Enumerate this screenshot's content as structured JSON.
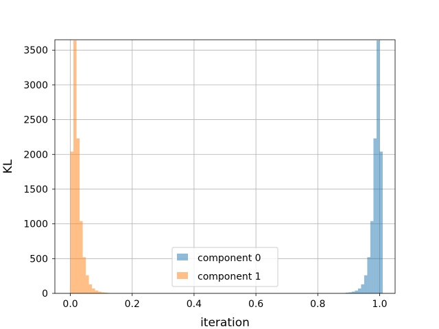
{
  "chart_data": {
    "type": "bar",
    "subtype": "histogram",
    "xlabel": "iteration",
    "ylabel": "KL",
    "xlim": [
      -0.05,
      1.05
    ],
    "ylim": [
      0,
      3650
    ],
    "grid": true,
    "legend_position": "lower-center",
    "x_ticks": [
      "0.0",
      "0.2",
      "0.4",
      "0.6",
      "0.8",
      "1.0"
    ],
    "y_ticks": [
      "0",
      "500",
      "1000",
      "1500",
      "2000",
      "2500",
      "3000",
      "3500"
    ],
    "bin_width": 0.01,
    "series": [
      {
        "name": "component 0",
        "color": "#1f77b4",
        "bins": [
          {
            "x0": 0.87,
            "count": 3
          },
          {
            "x0": 0.88,
            "count": 5
          },
          {
            "x0": 0.89,
            "count": 10
          },
          {
            "x0": 0.9,
            "count": 15
          },
          {
            "x0": 0.91,
            "count": 25
          },
          {
            "x0": 0.92,
            "count": 40
          },
          {
            "x0": 0.93,
            "count": 70
          },
          {
            "x0": 0.94,
            "count": 130
          },
          {
            "x0": 0.95,
            "count": 260
          },
          {
            "x0": 0.96,
            "count": 520
          },
          {
            "x0": 0.97,
            "count": 1040
          },
          {
            "x0": 0.98,
            "count": 2230
          },
          {
            "x0": 0.99,
            "count": 3640
          },
          {
            "x0": 1.0,
            "count": 2040
          }
        ]
      },
      {
        "name": "component 1",
        "color": "#ff7f0e",
        "bins": [
          {
            "x0": 0.0,
            "count": 2040
          },
          {
            "x0": 0.01,
            "count": 3640
          },
          {
            "x0": 0.02,
            "count": 2230
          },
          {
            "x0": 0.03,
            "count": 1040
          },
          {
            "x0": 0.04,
            "count": 520
          },
          {
            "x0": 0.05,
            "count": 260
          },
          {
            "x0": 0.06,
            "count": 130
          },
          {
            "x0": 0.07,
            "count": 70
          },
          {
            "x0": 0.08,
            "count": 40
          },
          {
            "x0": 0.09,
            "count": 25
          },
          {
            "x0": 0.1,
            "count": 15
          },
          {
            "x0": 0.11,
            "count": 10
          },
          {
            "x0": 0.12,
            "count": 5
          },
          {
            "x0": 0.13,
            "count": 3
          }
        ]
      }
    ]
  }
}
